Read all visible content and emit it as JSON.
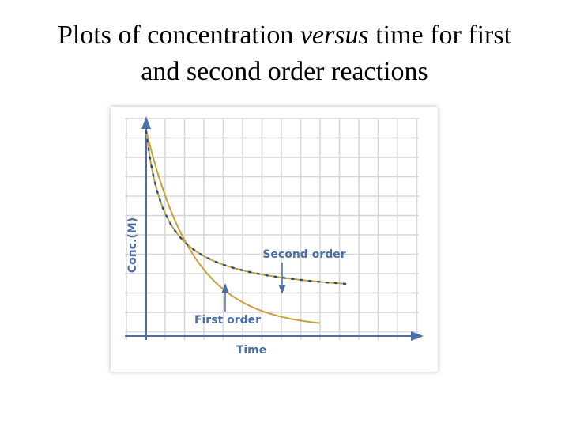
{
  "title": {
    "line_1_start": "Plots of concentration",
    "line_1_emphasis": "versus",
    "line_1_end": "time for first",
    "line_2": "and second order reactions"
  },
  "diagram": {
    "y_axis_label": "Conc.(M)",
    "x_axis_label": "Time",
    "second_order_label": "Second order",
    "first_order_label": "First order"
  }
}
